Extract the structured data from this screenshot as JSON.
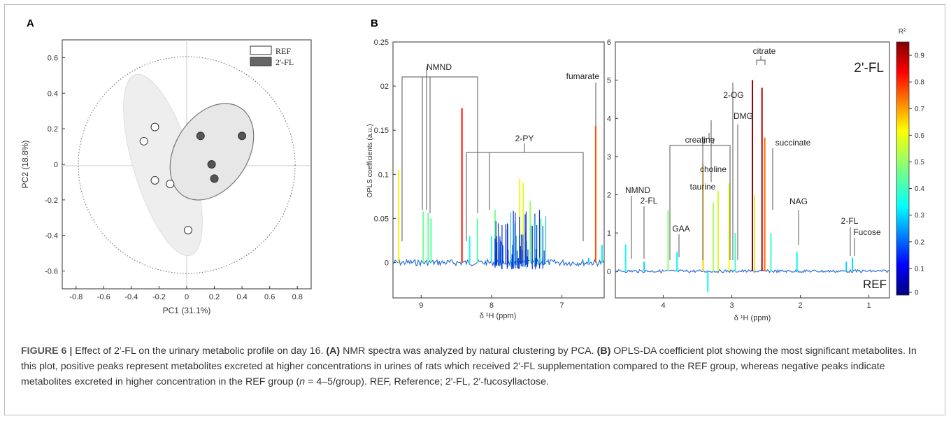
{
  "figure": {
    "panelA": {
      "label": "A",
      "xlabel": "PC1 (31.1%)",
      "ylabel": "PC2 (18.8%)",
      "xticks": [
        "-0.8",
        "-0.6",
        "-0.4",
        "-0.2",
        "0",
        "0.2",
        "0.4",
        "0.6",
        "0.8"
      ],
      "yticks": [
        "0.6",
        "0.4",
        "0.2",
        "0",
        "-0.2",
        "-0.4",
        "-0.6"
      ],
      "legend": [
        "REF",
        "2'-FL"
      ]
    },
    "panelB": {
      "label": "B",
      "ylabel_left": "OPLS coefficients (a.u.)",
      "xlabel": "δ ¹H (ppm)",
      "left_yticks": [
        "0.25",
        "02",
        "0.15",
        "0.1",
        "0.05",
        "0"
      ],
      "left_xticks": [
        "9",
        "8",
        "7"
      ],
      "right_yticks": [
        "6",
        "5",
        "4",
        "3",
        "2",
        "1",
        "0"
      ],
      "right_xticks": [
        "4",
        "3",
        "2",
        "1"
      ],
      "group_top": "2'-FL",
      "group_bottom": "REF",
      "colorbar_title": "R²",
      "colorbar_ticks": [
        "0.9",
        "0.8",
        "0.7",
        "0.6",
        "0.5",
        "0.4",
        "0.3",
        "0.2",
        "0.1",
        "0"
      ],
      "colors": {
        "low": "#00007f",
        "high": "#7f0000"
      }
    },
    "labels_left": {
      "nmnd": "NMND",
      "twopy": "2-PY",
      "fumarate": "fumarate"
    },
    "labels_right": {
      "nmnd": "NMND",
      "twofl_a": "2-FL",
      "gaa": "GAA",
      "creatine": "creatine",
      "taurine": "taurine",
      "choline": "choline",
      "twoog": "2-OG",
      "dmg": "DMG",
      "citrate": "citrate",
      "succinate": "succinate",
      "nag": "NAG",
      "twofl_b": "2-FL",
      "fucose": "Fucose"
    }
  },
  "chart_data": [
    {
      "type": "scatter",
      "title": "",
      "xlabel": "PC1 (31.1%)",
      "ylabel": "PC2 (18.8%)",
      "xlim": [
        -0.9,
        0.9
      ],
      "ylim": [
        -0.7,
        0.7
      ],
      "grid": false,
      "legend_position": "top-right",
      "series": [
        {
          "name": "REF",
          "x": [
            -0.31,
            -0.23,
            -0.12,
            -0.23,
            0.01
          ],
          "y": [
            0.13,
            0.21,
            -0.11,
            -0.09,
            -0.37
          ]
        },
        {
          "name": "2'-FL",
          "x": [
            0.1,
            0.4,
            0.18,
            0.2
          ],
          "y": [
            0.16,
            0.16,
            0.0,
            -0.08
          ]
        }
      ]
    },
    {
      "type": "line",
      "title": "",
      "xlabel": "δ ¹H (ppm)",
      "ylabel": "OPLS coefficients (a.u.)",
      "xlim": [
        9.4,
        6.4
      ],
      "ylim": [
        -0.04,
        0.25
      ],
      "peaks": [
        {
          "x": 9.32,
          "y": 0.105
        },
        {
          "x": 8.97,
          "y": 0.058
        },
        {
          "x": 8.9,
          "y": 0.056
        },
        {
          "x": 8.86,
          "y": 0.05
        },
        {
          "x": 8.42,
          "y": 0.175
        },
        {
          "x": 8.31,
          "y": 0.03
        },
        {
          "x": 8.2,
          "y": 0.05
        },
        {
          "x": 8.0,
          "y": 0.03
        },
        {
          "x": 7.95,
          "y": 0.06
        },
        {
          "x": 7.6,
          "y": 0.095
        },
        {
          "x": 7.55,
          "y": 0.09
        },
        {
          "x": 7.45,
          "y": 0.07
        },
        {
          "x": 7.3,
          "y": 0.05
        },
        {
          "x": 6.62,
          "y": 0.005
        },
        {
          "x": 6.52,
          "y": 0.155
        },
        {
          "x": 6.43,
          "y": 0.02
        }
      ]
    },
    {
      "type": "line",
      "title": "",
      "xlabel": "δ ¹H (ppm)",
      "ylabel": "",
      "xlim": [
        4.7,
        0.7
      ],
      "ylim": [
        -0.7,
        6.0
      ],
      "peaks": [
        {
          "x": 4.55,
          "y": 0.7
        },
        {
          "x": 4.28,
          "y": 0.25
        },
        {
          "x": 3.8,
          "y": 0.5
        },
        {
          "x": 3.93,
          "y": 1.6
        },
        {
          "x": 3.42,
          "y": 2.8
        },
        {
          "x": 3.27,
          "y": 1.8
        },
        {
          "x": 3.2,
          "y": 2.1
        },
        {
          "x": 3.04,
          "y": 2.3
        },
        {
          "x": 2.95,
          "y": 1.0
        },
        {
          "x": 2.7,
          "y": 5.0
        },
        {
          "x": 2.67,
          "y": 2.0
        },
        {
          "x": 2.56,
          "y": 4.8
        },
        {
          "x": 2.52,
          "y": 3.5
        },
        {
          "x": 2.43,
          "y": 1.0
        },
        {
          "x": 2.05,
          "y": 0.5
        },
        {
          "x": 1.33,
          "y": 0.25
        },
        {
          "x": 1.24,
          "y": 0.35
        },
        {
          "x": 3.35,
          "y": -0.55
        }
      ]
    }
  ],
  "caption": {
    "head": "FIGURE 6 | ",
    "lead": "Effect of 2′-FL on the urinary metabolic profile on day 16. ",
    "a_label": "(A)",
    "a_text": " NMR spectra was analyzed by natural clustering by PCA. ",
    "b_label": "(B)",
    "b_text": " OPLS-DA coefficient plot showing the most significant metabolites. In this plot, positive peaks represent metabolites excreted at higher concentrations in urines of rats which received 2′-FL supplementation compared to the REF group, whereas negative peaks indicate metabolites excreted in higher concentration in the REF group (",
    "n_italic": "n",
    "n_rest": " = 4–5/group). REF, Reference; 2′-FL, 2′-fucosyllactose."
  }
}
